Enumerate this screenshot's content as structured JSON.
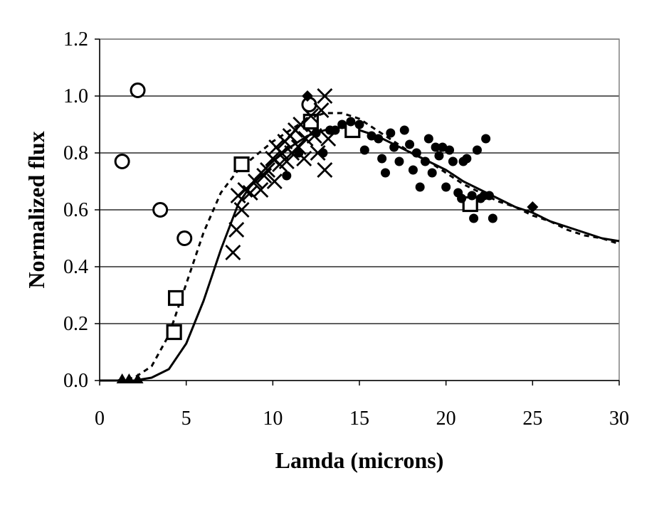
{
  "chart_data": {
    "type": "scatter",
    "title": "",
    "xlabel": "Lamda (microns)",
    "ylabel": "Normalized flux",
    "xlim": [
      0,
      30
    ],
    "ylim": [
      0,
      1.2
    ],
    "x_ticks": [
      "0",
      "5",
      "10",
      "15",
      "20",
      "25",
      "30"
    ],
    "y_ticks": [
      "0.0",
      "0.2",
      "0.4",
      "0.6",
      "0.8",
      "1.0",
      "1.2"
    ],
    "x_tick_values": [
      0,
      5,
      10,
      15,
      20,
      25,
      30
    ],
    "y_tick_values": [
      0,
      0.2,
      0.4,
      0.6,
      0.8,
      1.0,
      1.2
    ],
    "grid": "horizontal",
    "legend": "none",
    "series": [
      {
        "marker": "open-circle",
        "points": [
          [
            1.3,
            0.77
          ],
          [
            2.2,
            1.02
          ],
          [
            3.5,
            0.6
          ],
          [
            4.9,
            0.5
          ],
          [
            12.1,
            0.97
          ]
        ]
      },
      {
        "marker": "open-square",
        "points": [
          [
            4.3,
            0.17
          ],
          [
            4.4,
            0.29
          ],
          [
            8.2,
            0.76
          ],
          [
            12.2,
            0.91
          ],
          [
            14.6,
            0.88
          ],
          [
            21.4,
            0.62
          ]
        ]
      },
      {
        "marker": "cross",
        "points": [
          [
            7.7,
            0.45
          ],
          [
            7.9,
            0.53
          ],
          [
            8.0,
            0.65
          ],
          [
            8.2,
            0.6
          ],
          [
            8.4,
            0.67
          ],
          [
            8.7,
            0.66
          ],
          [
            9.0,
            0.7
          ],
          [
            9.3,
            0.67
          ],
          [
            9.5,
            0.72
          ],
          [
            9.7,
            0.74
          ],
          [
            10.0,
            0.78
          ],
          [
            10.1,
            0.7
          ],
          [
            10.2,
            0.82
          ],
          [
            10.4,
            0.76
          ],
          [
            10.5,
            0.8
          ],
          [
            10.7,
            0.84
          ],
          [
            10.8,
            0.77
          ],
          [
            11.0,
            0.86
          ],
          [
            11.1,
            0.8
          ],
          [
            11.3,
            0.88
          ],
          [
            11.5,
            0.82
          ],
          [
            11.6,
            0.9
          ],
          [
            11.8,
            0.78
          ],
          [
            11.9,
            0.85
          ],
          [
            12.2,
            0.93
          ],
          [
            12.4,
            0.86
          ],
          [
            12.6,
            0.8
          ],
          [
            12.8,
            0.95
          ],
          [
            13.0,
            1.0
          ],
          [
            13.0,
            0.74
          ],
          [
            13.2,
            0.85
          ]
        ]
      },
      {
        "marker": "filled-circle",
        "points": [
          [
            10.8,
            0.72
          ],
          [
            11.5,
            0.8
          ],
          [
            12.5,
            0.87
          ],
          [
            12.9,
            0.8
          ],
          [
            13.3,
            0.88
          ],
          [
            13.6,
            0.88
          ],
          [
            14.0,
            0.9
          ],
          [
            14.5,
            0.91
          ],
          [
            15.0,
            0.9
          ],
          [
            15.3,
            0.81
          ],
          [
            15.7,
            0.86
          ],
          [
            16.1,
            0.85
          ],
          [
            16.3,
            0.78
          ],
          [
            16.5,
            0.73
          ],
          [
            16.8,
            0.87
          ],
          [
            17.0,
            0.82
          ],
          [
            17.3,
            0.77
          ],
          [
            17.6,
            0.88
          ],
          [
            17.9,
            0.83
          ],
          [
            18.1,
            0.74
          ],
          [
            18.3,
            0.8
          ],
          [
            18.5,
            0.68
          ],
          [
            18.8,
            0.77
          ],
          [
            19.0,
            0.85
          ],
          [
            19.2,
            0.73
          ],
          [
            19.4,
            0.82
          ],
          [
            19.6,
            0.79
          ],
          [
            19.8,
            0.82
          ],
          [
            20.0,
            0.68
          ],
          [
            20.2,
            0.81
          ],
          [
            20.4,
            0.77
          ],
          [
            20.7,
            0.66
          ],
          [
            20.9,
            0.64
          ],
          [
            21.0,
            0.77
          ],
          [
            21.2,
            0.78
          ],
          [
            21.5,
            0.65
          ],
          [
            21.6,
            0.57
          ],
          [
            21.8,
            0.81
          ],
          [
            22.0,
            0.64
          ],
          [
            22.2,
            0.65
          ],
          [
            22.3,
            0.85
          ],
          [
            22.5,
            0.65
          ],
          [
            22.7,
            0.57
          ]
        ]
      },
      {
        "marker": "filled-triangle",
        "points": [
          [
            1.3,
            0.0
          ],
          [
            1.7,
            0.0
          ],
          [
            2.2,
            0.0
          ]
        ]
      },
      {
        "marker": "filled-diamond",
        "points": [
          [
            12.0,
            1.0
          ],
          [
            25.0,
            0.61
          ]
        ]
      },
      {
        "line": "solid",
        "points": [
          [
            0,
            0.0
          ],
          [
            1,
            0.0
          ],
          [
            2,
            0.0
          ],
          [
            3,
            0.01
          ],
          [
            4,
            0.04
          ],
          [
            5,
            0.13
          ],
          [
            6,
            0.28
          ],
          [
            7,
            0.46
          ],
          [
            8,
            0.62
          ],
          [
            9,
            0.71
          ],
          [
            10,
            0.77
          ],
          [
            11,
            0.82
          ],
          [
            12,
            0.86
          ],
          [
            13,
            0.88
          ],
          [
            14,
            0.89
          ],
          [
            15,
            0.88
          ],
          [
            16,
            0.86
          ],
          [
            17,
            0.83
          ],
          [
            18,
            0.8
          ],
          [
            19,
            0.77
          ],
          [
            20,
            0.74
          ],
          [
            21,
            0.7
          ],
          [
            22,
            0.67
          ],
          [
            23,
            0.64
          ],
          [
            24,
            0.61
          ],
          [
            25,
            0.59
          ],
          [
            26,
            0.56
          ],
          [
            27,
            0.54
          ],
          [
            28,
            0.52
          ],
          [
            29,
            0.5
          ],
          [
            30,
            0.49
          ]
        ]
      },
      {
        "line": "dashed",
        "points": [
          [
            0,
            0.0
          ],
          [
            1,
            0.0
          ],
          [
            2,
            0.01
          ],
          [
            3,
            0.05
          ],
          [
            4,
            0.16
          ],
          [
            5,
            0.34
          ],
          [
            6,
            0.52
          ],
          [
            7,
            0.66
          ],
          [
            8,
            0.74
          ],
          [
            9,
            0.79
          ],
          [
            10,
            0.84
          ],
          [
            11,
            0.88
          ],
          [
            12,
            0.92
          ],
          [
            13,
            0.94
          ],
          [
            14,
            0.94
          ],
          [
            15,
            0.92
          ],
          [
            16,
            0.88
          ],
          [
            17,
            0.84
          ],
          [
            18,
            0.8
          ],
          [
            19,
            0.77
          ],
          [
            20,
            0.73
          ],
          [
            21,
            0.69
          ],
          [
            22,
            0.66
          ],
          [
            23,
            0.63
          ],
          [
            24,
            0.61
          ],
          [
            25,
            0.58
          ],
          [
            26,
            0.56
          ],
          [
            27,
            0.53
          ],
          [
            28,
            0.51
          ],
          [
            29,
            0.5
          ],
          [
            30,
            0.48
          ]
        ]
      }
    ]
  }
}
